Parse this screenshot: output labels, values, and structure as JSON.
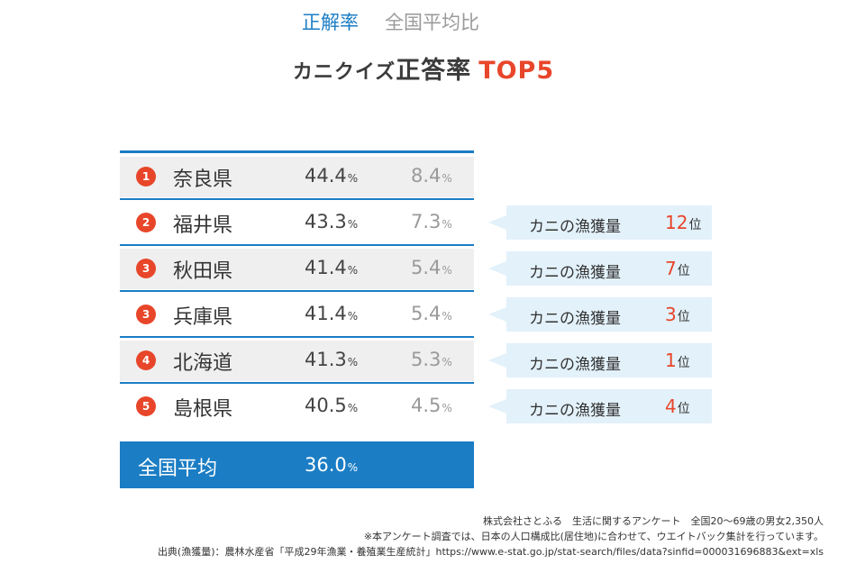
{
  "title": {
    "part1": "カニクイズ",
    "part2": "正答率",
    "part3": "TOP5"
  },
  "columns": {
    "rate": "正解率",
    "ratio": "全国平均比"
  },
  "unit": "%",
  "chart_data": {
    "type": "table",
    "title": "カニクイズ正答率 TOP5",
    "columns": [
      "正解率",
      "全国平均比"
    ],
    "rows": [
      {
        "rank": "1",
        "prefecture": "奈良県",
        "rate": "44.4",
        "ratio": "8.4",
        "crab_rank": null
      },
      {
        "rank": "2",
        "prefecture": "福井県",
        "rate": "43.3",
        "ratio": "7.3",
        "crab_rank": "12"
      },
      {
        "rank": "3",
        "prefecture": "秋田県",
        "rate": "41.4",
        "ratio": "5.4",
        "crab_rank": "7"
      },
      {
        "rank": "3",
        "prefecture": "兵庫県",
        "rate": "41.4",
        "ratio": "5.4",
        "crab_rank": "3"
      },
      {
        "rank": "4",
        "prefecture": "北海道",
        "rate": "41.3",
        "ratio": "5.3",
        "crab_rank": "1"
      },
      {
        "rank": "5",
        "prefecture": "島根県",
        "rate": "40.5",
        "ratio": "4.5",
        "crab_rank": "4"
      }
    ],
    "average": {
      "label": "全国平均",
      "rate": "36.0"
    }
  },
  "callout": {
    "label": "カニの漁獲量",
    "unit": "位"
  },
  "footnotes": [
    "株式会社さとふる　生活に関するアンケート　全国20～69歳の男女2,350人",
    "※本アンケート調査では、日本の人口構成比(居住地)に合わせて、ウエイトバック集計を行っています。",
    "出典(漁獲量)：農林水産省「平成29年漁業・養殖業生産統計」https://www.e-stat.go.jp/stat-search/files/data?sinfid=000031696883&ext=xls"
  ],
  "colors": {
    "accent_blue": "#1b7dc4",
    "accent_red": "#e8462a",
    "callout_bg": "#e2f1fa",
    "row_shade": "#efefef"
  }
}
